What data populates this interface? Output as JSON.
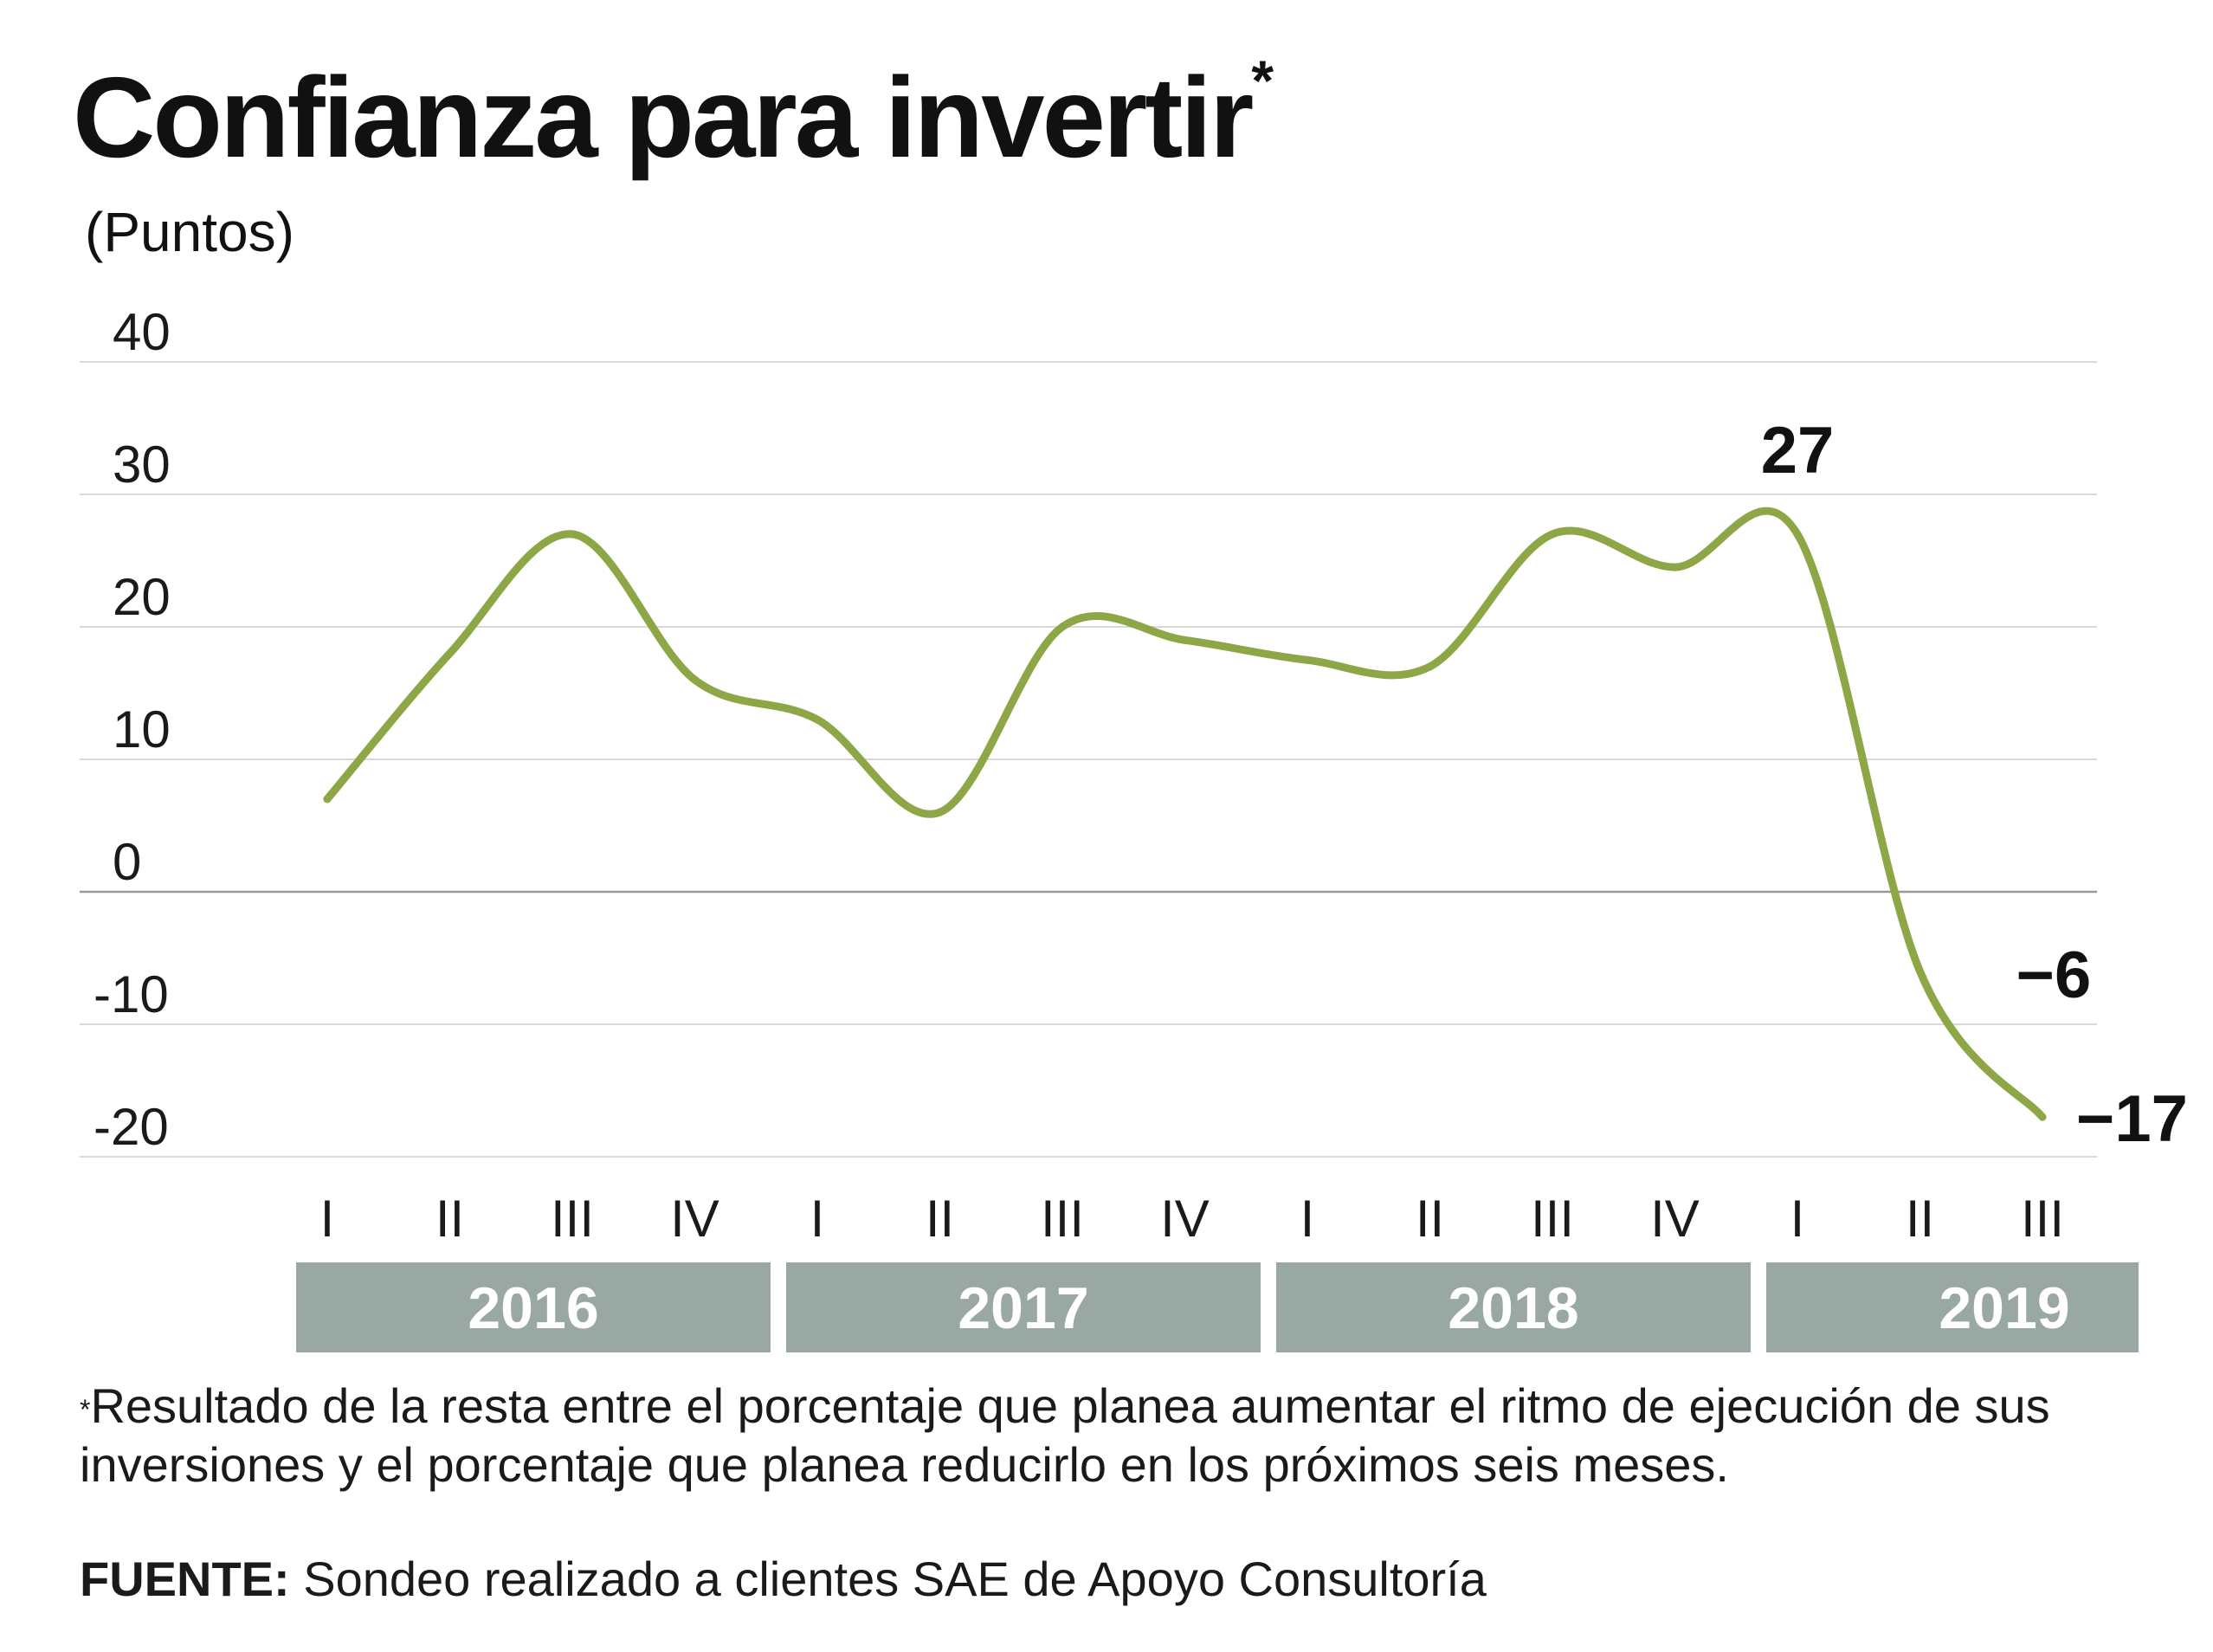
{
  "title": "Confianza para invertir",
  "title_marker": "*",
  "unit": "(Puntos)",
  "footnote_marker": "*",
  "footnote": "Resultado de la resta entre el porcentaje que planea aumentar el ritmo de ejecución de sus inversiones y el porcentaje que planea reducirlo en los próximos seis meses.",
  "source_label": "FUENTE:",
  "source_text": "Sondeo realizado a clientes SAE de Apoyo Consultoría",
  "colors": {
    "line": "#8da747",
    "year_band": "#9aa8a4",
    "grid": "#d9d9d9",
    "zero_line": "#999999"
  },
  "chart_data": {
    "type": "line",
    "title": "Confianza para invertir",
    "ylabel": "(Puntos)",
    "ylim": [
      -20,
      40
    ],
    "yticks": [
      40,
      30,
      20,
      10,
      0,
      -10,
      -20
    ],
    "ytick_labels": [
      "40",
      "30",
      "20",
      "10",
      "0",
      "-10",
      "-20"
    ],
    "grid": true,
    "quarters": [
      "I",
      "II",
      "III",
      "IV",
      "I",
      "II",
      "III",
      "IV",
      "I",
      "II",
      "III",
      "IV",
      "I",
      "II",
      "III"
    ],
    "years": [
      {
        "label": "2016",
        "quarters": 4
      },
      {
        "label": "2017",
        "quarters": 4
      },
      {
        "label": "2018",
        "quarters": 4
      },
      {
        "label": "2019",
        "quarters": 3
      }
    ],
    "series": [
      {
        "values": [
          7,
          18,
          27,
          16,
          13,
          6,
          20,
          19,
          17.5,
          17,
          27,
          24.5,
          27,
          -6,
          -17
        ]
      }
    ],
    "annotations": [
      {
        "index": 12,
        "label": "27"
      },
      {
        "index": 13,
        "label": "-6"
      },
      {
        "index": 14,
        "label": "-17"
      }
    ]
  }
}
